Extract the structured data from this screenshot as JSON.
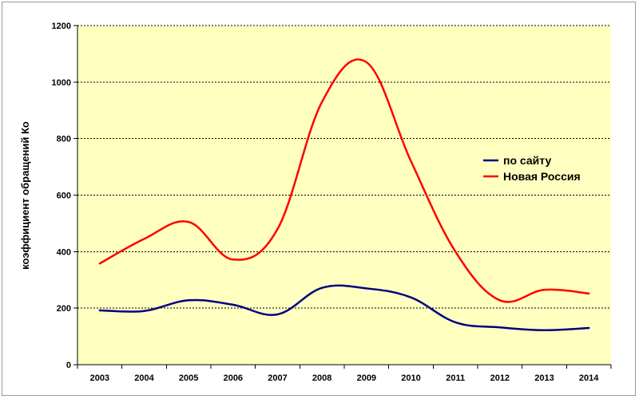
{
  "chart_data": {
    "type": "line",
    "title": "",
    "xlabel": "",
    "ylabel": "коэффициент обращений Ко",
    "x": [
      "2003",
      "2004",
      "2005",
      "2006",
      "2007",
      "2008",
      "2009",
      "2010",
      "2011",
      "2012",
      "2013",
      "2014"
    ],
    "ylim": [
      0,
      1200
    ],
    "yticks": [
      0,
      200,
      400,
      600,
      800,
      1000,
      1200
    ],
    "grid": "horizontal-dashed",
    "legend": "right",
    "plot_background": "#ffffc0",
    "series": [
      {
        "name": "по сайту",
        "color": "#000080",
        "values": [
          192,
          190,
          228,
          212,
          178,
          272,
          270,
          238,
          150,
          132,
          122,
          130
        ]
      },
      {
        "name": "Новая Россия",
        "color": "#ff0000",
        "values": [
          358,
          445,
          505,
          372,
          480,
          930,
          1070,
          720,
          400,
          228,
          265,
          252
        ]
      }
    ]
  }
}
